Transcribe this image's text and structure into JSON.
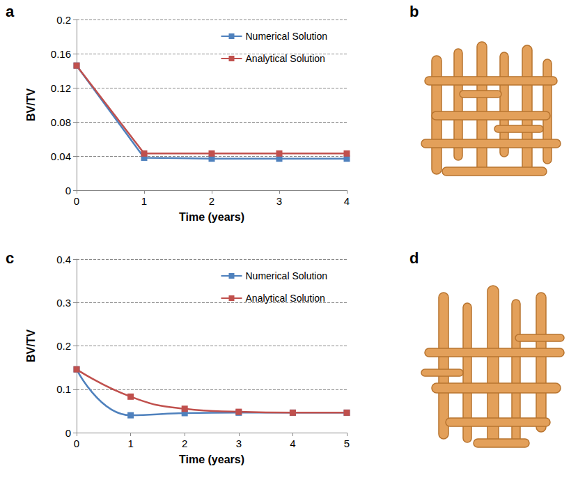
{
  "chart_data": [
    {
      "type": "line",
      "title": "a",
      "x": [
        0,
        1,
        2,
        3,
        4
      ],
      "series": [
        {
          "name": "Numerical Solution",
          "color": "#4f81bd",
          "values": [
            0.146,
            0.038,
            0.037,
            0.037,
            0.037
          ]
        },
        {
          "name": "Analytical Solution",
          "color": "#c0504d",
          "values": [
            0.146,
            0.043,
            0.043,
            0.043,
            0.043
          ]
        }
      ],
      "xlabel": "Time (years)",
      "ylabel": "BV/TV",
      "xlim": [
        0,
        4
      ],
      "xticks": [
        0,
        1,
        2,
        3,
        4
      ],
      "ylim": [
        0,
        0.2
      ],
      "yticks": [
        0,
        0.04,
        0.08,
        0.12,
        0.16,
        0.2
      ],
      "grid": true,
      "legend": "upper right",
      "marker": "square",
      "line_style": "solid"
    },
    {
      "type": "line",
      "title": "c",
      "x": [
        0,
        1,
        2,
        3,
        4,
        5
      ],
      "series": [
        {
          "name": "Numerical Solution",
          "color": "#4f81bd",
          "values": [
            0.146,
            0.04,
            0.045,
            0.046,
            0.046,
            0.046
          ]
        },
        {
          "name": "Analytical Solution",
          "color": "#c0504d",
          "values": [
            0.146,
            0.083,
            0.055,
            0.048,
            0.046,
            0.046
          ]
        }
      ],
      "xlabel": "Time (years)",
      "ylabel": "BV/TV",
      "xlim": [
        0,
        5
      ],
      "xticks": [
        0,
        1,
        2,
        3,
        4,
        5
      ],
      "ylim": [
        0,
        0.4
      ],
      "yticks": [
        0,
        0.1,
        0.2,
        0.3,
        0.4
      ],
      "grid": true,
      "legend": "upper right",
      "marker": "square",
      "line_style": "smooth"
    }
  ],
  "images": [
    {
      "label": "b"
    },
    {
      "label": "d"
    }
  ]
}
